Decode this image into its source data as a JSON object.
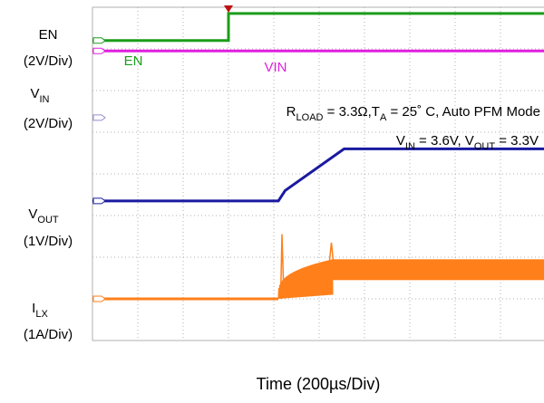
{
  "chart_data": {
    "type": "line",
    "xlabel": "Time (200µs/Div)",
    "x_units_per_div": "200µs",
    "divisions": {
      "x": 10,
      "y": 8
    },
    "channel_labels": [
      {
        "name": "EN",
        "scale": "(2V/Div)"
      },
      {
        "main": "V",
        "sub": "IN",
        "scale": "(2V/Div)"
      },
      {
        "main": "V",
        "sub": "OUT",
        "scale": "(1V/Div)"
      },
      {
        "main": "I",
        "sub": "LX",
        "scale": "(1A/Div)"
      }
    ],
    "trace_labels": {
      "en": "EN",
      "vin": "VIN"
    },
    "conditions": {
      "line1": {
        "r": "R",
        "r_sub": "LOAD",
        "r_val": " = 3.3Ω,T",
        "t_sub": "A",
        "t_val": " = 25˚ C, Auto PFM Mode"
      },
      "line2": {
        "vin": "V",
        "vin_sub": "IN",
        "vin_val": " = 3.6V, V",
        "vout_sub": "OUT",
        "vout_val": " = 3.3V"
      }
    },
    "colors": {
      "en": "#1a9e1a",
      "vin": "#e020e0",
      "vout": "#1a1aa0",
      "ilx": "#ff7f1a",
      "trigger": "#c01010",
      "grid": "#b0b0b0"
    },
    "series": [
      {
        "key": "en",
        "x": [
          0,
          3.0,
          3.0,
          10
        ],
        "y": [
          7.2,
          7.2,
          7.85,
          7.85
        ]
      },
      {
        "key": "vin",
        "x": [
          0,
          10
        ],
        "y": [
          6.95,
          6.95
        ]
      },
      {
        "key": "vout",
        "x": [
          0,
          4.1,
          4.25,
          5.55,
          10
        ],
        "y": [
          3.35,
          3.35,
          3.6,
          4.6,
          4.6
        ]
      },
      {
        "key": "ilx",
        "x": [
          0,
          4.1,
          10
        ],
        "y": [
          1.0,
          1.0,
          1.45
        ]
      }
    ]
  }
}
